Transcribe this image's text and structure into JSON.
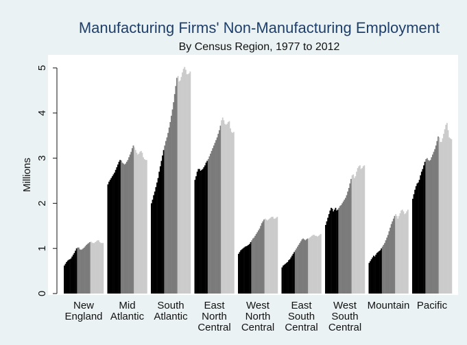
{
  "chart_data": {
    "type": "bar",
    "title": "Manufacturing Firms' Non-Manufacturing Employment",
    "subtitle": "By Census Region, 1977 to 2012",
    "xlabel": "",
    "ylabel": "Millions",
    "ylim": [
      0,
      5
    ],
    "yticks": [
      "0",
      "1",
      "2",
      "3",
      "4",
      "5"
    ],
    "grid": false,
    "legend": "none",
    "years": [
      1977,
      1978,
      1979,
      1980,
      1981,
      1982,
      1983,
      1984,
      1985,
      1986,
      1987,
      1988,
      1989,
      1990,
      1991,
      1992,
      1993,
      1994,
      1995,
      1996,
      1997,
      1998,
      1999,
      2000,
      2001,
      2002,
      2003,
      2004,
      2005,
      2006,
      2007,
      2008,
      2009,
      2010,
      2011,
      2012
    ],
    "shades": [
      "#000000",
      "#7b7b7b",
      "#cbcbcb"
    ],
    "categories": [
      {
        "label_lines": [
          "New",
          "England"
        ],
        "values": [
          0.62,
          0.66,
          0.7,
          0.73,
          0.75,
          0.76,
          0.78,
          0.82,
          0.86,
          0.9,
          0.95,
          1.0,
          1.02,
          1.02,
          0.98,
          0.97,
          0.98,
          1.0,
          1.02,
          1.05,
          1.08,
          1.1,
          1.12,
          1.14,
          1.15,
          1.13,
          1.12,
          1.12,
          1.14,
          1.16,
          1.18,
          1.18,
          1.14,
          1.12,
          1.12,
          1.12
        ]
      },
      {
        "label_lines": [
          "Mid",
          "Atlantic"
        ],
        "values": [
          2.42,
          2.48,
          2.52,
          2.56,
          2.6,
          2.64,
          2.68,
          2.74,
          2.8,
          2.86,
          2.92,
          2.96,
          2.95,
          2.9,
          2.88,
          2.86,
          2.88,
          2.92,
          2.96,
          3.02,
          3.08,
          3.14,
          3.22,
          3.28,
          3.24,
          3.18,
          3.12,
          3.08,
          3.1,
          3.14,
          3.16,
          3.12,
          3.02,
          2.98,
          2.96,
          2.96
        ]
      },
      {
        "label_lines": [
          "South",
          "Atlantic"
        ],
        "values": [
          2.0,
          2.08,
          2.18,
          2.26,
          2.36,
          2.46,
          2.56,
          2.7,
          2.82,
          2.94,
          3.06,
          3.18,
          3.28,
          3.38,
          3.46,
          3.56,
          3.68,
          3.8,
          3.94,
          4.08,
          4.24,
          4.42,
          4.6,
          4.78,
          4.82,
          4.7,
          4.72,
          4.8,
          4.9,
          4.98,
          5.02,
          4.96,
          4.86,
          4.86,
          4.88,
          4.92
        ]
      },
      {
        "label_lines": [
          "East",
          "North",
          "Central"
        ],
        "values": [
          2.52,
          2.6,
          2.7,
          2.76,
          2.76,
          2.72,
          2.74,
          2.76,
          2.8,
          2.84,
          2.9,
          2.94,
          2.98,
          3.04,
          3.1,
          3.16,
          3.22,
          3.28,
          3.34,
          3.4,
          3.46,
          3.54,
          3.62,
          3.72,
          3.84,
          3.9,
          3.84,
          3.76,
          3.74,
          3.76,
          3.8,
          3.82,
          3.66,
          3.58,
          3.56,
          3.58
        ]
      },
      {
        "label_lines": [
          "West",
          "North",
          "Central"
        ],
        "values": [
          0.88,
          0.92,
          0.96,
          0.98,
          1.0,
          1.02,
          1.04,
          1.05,
          1.06,
          1.08,
          1.1,
          1.14,
          1.18,
          1.22,
          1.24,
          1.28,
          1.32,
          1.36,
          1.4,
          1.44,
          1.5,
          1.56,
          1.6,
          1.64,
          1.66,
          1.64,
          1.62,
          1.64,
          1.66,
          1.68,
          1.7,
          1.7,
          1.66,
          1.66,
          1.68,
          1.7
        ]
      },
      {
        "label_lines": [
          "East",
          "South",
          "Central"
        ],
        "values": [
          0.58,
          0.62,
          0.64,
          0.66,
          0.68,
          0.7,
          0.74,
          0.76,
          0.8,
          0.84,
          0.88,
          0.92,
          0.96,
          1.0,
          1.04,
          1.08,
          1.12,
          1.16,
          1.2,
          1.22,
          1.2,
          1.18,
          1.2,
          1.22,
          1.22,
          1.24,
          1.26,
          1.28,
          1.3,
          1.3,
          1.28,
          1.28,
          1.26,
          1.28,
          1.3,
          1.32
        ]
      },
      {
        "label_lines": [
          "West",
          "South",
          "Central"
        ],
        "values": [
          1.52,
          1.6,
          1.68,
          1.76,
          1.84,
          1.9,
          1.88,
          1.82,
          1.86,
          1.9,
          1.84,
          1.86,
          1.9,
          1.94,
          1.96,
          2.0,
          2.04,
          2.08,
          2.12,
          2.18,
          2.26,
          2.34,
          2.44,
          2.54,
          2.62,
          2.64,
          2.56,
          2.6,
          2.7,
          2.78,
          2.82,
          2.84,
          2.76,
          2.78,
          2.82,
          2.84
        ]
      },
      {
        "label_lines": [
          "Mountain"
        ],
        "values": [
          0.68,
          0.72,
          0.76,
          0.8,
          0.84,
          0.82,
          0.86,
          0.9,
          0.92,
          0.94,
          0.96,
          1.0,
          1.04,
          1.08,
          1.12,
          1.18,
          1.24,
          1.3,
          1.38,
          1.46,
          1.54,
          1.6,
          1.66,
          1.72,
          1.76,
          1.72,
          1.66,
          1.72,
          1.78,
          1.84,
          1.86,
          1.82,
          1.76,
          1.78,
          1.82,
          1.86
        ]
      },
      {
        "label_lines": [
          "Pacific"
        ],
        "values": [
          2.1,
          2.2,
          2.3,
          2.38,
          2.44,
          2.46,
          2.52,
          2.62,
          2.7,
          2.76,
          2.84,
          2.92,
          2.98,
          3.0,
          2.96,
          2.94,
          2.96,
          3.02,
          3.08,
          3.14,
          3.2,
          3.28,
          3.38,
          3.48,
          3.46,
          3.36,
          3.36,
          3.44,
          3.54,
          3.64,
          3.74,
          3.78,
          3.62,
          3.46,
          3.44,
          3.42
        ]
      }
    ]
  }
}
